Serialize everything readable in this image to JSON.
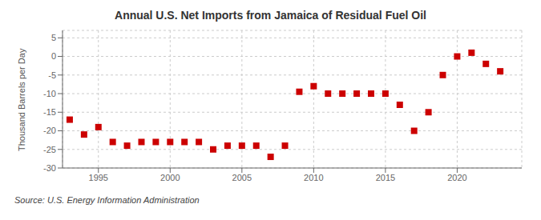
{
  "chart_data": {
    "type": "scatter",
    "title": "Annual U.S. Net Imports from Jamaica of Residual Fuel Oil",
    "y_label": "Thousand Barrels per Day",
    "annotations": [
      "Source: U.S. Energy Information Administration"
    ],
    "x": [
      1993,
      1994,
      1995,
      1996,
      1997,
      1998,
      1999,
      2000,
      2001,
      2002,
      2003,
      2004,
      2005,
      2006,
      2007,
      2008,
      2009,
      2010,
      2011,
      2012,
      2013,
      2014,
      2015,
      2016,
      2017,
      2018,
      2019,
      2020,
      2021,
      2022,
      2023
    ],
    "values": [
      -17,
      -21,
      -19,
      -23,
      -24,
      -23,
      -23,
      -23,
      -23,
      -23,
      -25,
      -24,
      -24,
      -24,
      -27,
      -24,
      -9.5,
      -8,
      -10,
      -10,
      -10,
      -10,
      -10,
      -13,
      -20,
      -15,
      -5,
      0,
      1,
      -2,
      -4
    ],
    "color": "#cc0000",
    "marker": "square",
    "xlim": [
      1992.5,
      2024.5
    ],
    "xticks": [
      1995,
      2000,
      2005,
      2010,
      2015,
      2020
    ],
    "ylim": [
      -30,
      7
    ],
    "yticks": [
      -30,
      -25,
      -20,
      -15,
      -10,
      -5,
      0,
      5
    ],
    "grid": true
  }
}
